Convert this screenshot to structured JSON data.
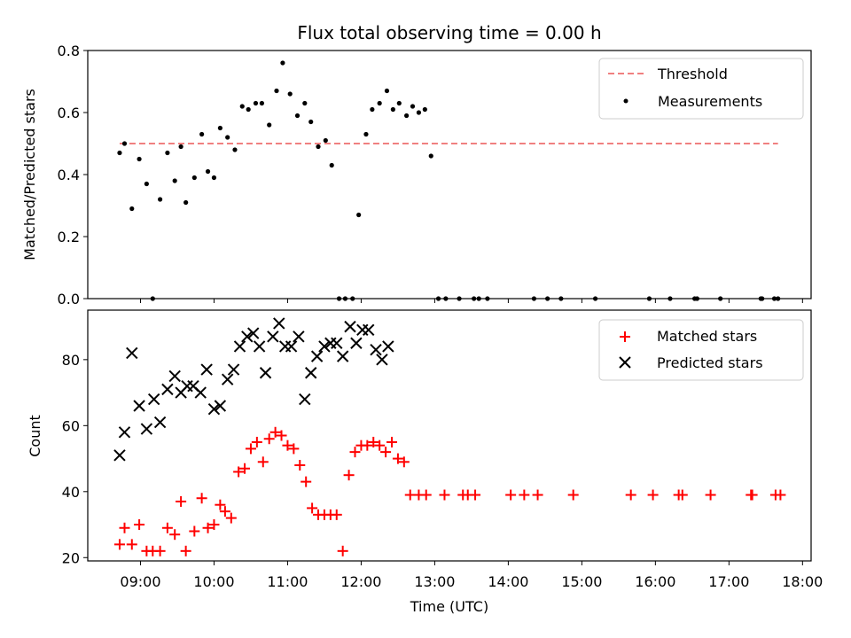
{
  "chart_data": [
    {
      "type": "scatter",
      "title": "Flux total observing time = 0.00 h",
      "ylabel": "Matched/Predicted stars",
      "xlabel": "",
      "xlim": [
        "08:17",
        "18:07"
      ],
      "ylim": [
        0,
        0.8
      ],
      "yticks": [
        "0.0",
        "0.2",
        "0.4",
        "0.6",
        "0.8"
      ],
      "legend_position": "top-right",
      "threshold": {
        "name": "Threshold",
        "value": 0.5,
        "x_start": "08:43",
        "x_end": "17:40",
        "color": "#f08080"
      },
      "series": [
        {
          "name": "Measurements",
          "color": "#000000",
          "marker": "dot",
          "points": [
            [
              "08:43",
              0.47
            ],
            [
              "08:47",
              0.5
            ],
            [
              "08:53",
              0.29
            ],
            [
              "08:59",
              0.45
            ],
            [
              "09:05",
              0.37
            ],
            [
              "09:10",
              0.0
            ],
            [
              "09:16",
              0.32
            ],
            [
              "09:22",
              0.47
            ],
            [
              "09:28",
              0.38
            ],
            [
              "09:33",
              0.49
            ],
            [
              "09:37",
              0.31
            ],
            [
              "09:44",
              0.39
            ],
            [
              "09:50",
              0.53
            ],
            [
              "09:55",
              0.41
            ],
            [
              "10:00",
              0.39
            ],
            [
              "10:05",
              0.55
            ],
            [
              "10:11",
              0.52
            ],
            [
              "10:17",
              0.48
            ],
            [
              "10:23",
              0.62
            ],
            [
              "10:28",
              0.61
            ],
            [
              "10:34",
              0.63
            ],
            [
              "10:39",
              0.63
            ],
            [
              "10:45",
              0.56
            ],
            [
              "10:51",
              0.67
            ],
            [
              "10:56",
              0.76
            ],
            [
              "11:02",
              0.66
            ],
            [
              "11:08",
              0.59
            ],
            [
              "11:14",
              0.63
            ],
            [
              "11:19",
              0.57
            ],
            [
              "11:25",
              0.49
            ],
            [
              "11:31",
              0.51
            ],
            [
              "11:36",
              0.43
            ],
            [
              "11:42",
              0.0
            ],
            [
              "11:47",
              0.0
            ],
            [
              "11:53",
              0.0
            ],
            [
              "11:58",
              0.27
            ],
            [
              "12:04",
              0.53
            ],
            [
              "12:09",
              0.61
            ],
            [
              "12:15",
              0.63
            ],
            [
              "12:21",
              0.67
            ],
            [
              "12:26",
              0.61
            ],
            [
              "12:31",
              0.63
            ],
            [
              "12:37",
              0.59
            ],
            [
              "12:42",
              0.62
            ],
            [
              "12:47",
              0.6
            ],
            [
              "12:52",
              0.61
            ],
            [
              "12:57",
              0.46
            ],
            [
              "13:03",
              0.0
            ],
            [
              "13:09",
              0.0
            ],
            [
              "13:20",
              0.0
            ],
            [
              "13:32",
              0.0
            ],
            [
              "13:36",
              0.0
            ],
            [
              "13:43",
              0.0
            ],
            [
              "14:21",
              0.0
            ],
            [
              "14:32",
              0.0
            ],
            [
              "14:43",
              0.0
            ],
            [
              "15:11",
              0.0
            ],
            [
              "15:55",
              0.0
            ],
            [
              "16:12",
              0.0
            ],
            [
              "16:32",
              0.0
            ],
            [
              "16:34",
              0.0
            ],
            [
              "16:53",
              0.0
            ],
            [
              "17:26",
              0.0
            ],
            [
              "17:27",
              0.0
            ],
            [
              "17:37",
              0.0
            ],
            [
              "17:40",
              0.0
            ]
          ]
        }
      ]
    },
    {
      "type": "scatter",
      "title": "",
      "ylabel": "Count",
      "xlabel": "Time (UTC)",
      "xlim": [
        "08:17",
        "18:07"
      ],
      "ylim": [
        19,
        95
      ],
      "yticks": [
        "20",
        "40",
        "60",
        "80"
      ],
      "xticks": [
        "09:00",
        "10:00",
        "11:00",
        "12:00",
        "13:00",
        "14:00",
        "15:00",
        "16:00",
        "17:00",
        "18:00"
      ],
      "legend_position": "top-right",
      "series": [
        {
          "name": "Matched stars",
          "color": "#ff0000",
          "marker": "plus",
          "points": [
            [
              "08:43",
              24
            ],
            [
              "08:47",
              29
            ],
            [
              "08:53",
              24
            ],
            [
              "08:59",
              30
            ],
            [
              "09:05",
              22
            ],
            [
              "09:10",
              22
            ],
            [
              "09:16",
              22
            ],
            [
              "09:22",
              29
            ],
            [
              "09:28",
              27
            ],
            [
              "09:33",
              37
            ],
            [
              "09:37",
              22
            ],
            [
              "09:44",
              28
            ],
            [
              "09:50",
              38
            ],
            [
              "09:55",
              29
            ],
            [
              "10:00",
              30
            ],
            [
              "10:05",
              36
            ],
            [
              "10:09",
              34
            ],
            [
              "10:14",
              32
            ],
            [
              "10:20",
              46
            ],
            [
              "10:25",
              47
            ],
            [
              "10:30",
              53
            ],
            [
              "10:35",
              55
            ],
            [
              "10:40",
              49
            ],
            [
              "10:45",
              56
            ],
            [
              "10:50",
              58
            ],
            [
              "10:55",
              57
            ],
            [
              "11:00",
              54
            ],
            [
              "11:05",
              53
            ],
            [
              "11:10",
              48
            ],
            [
              "11:15",
              43
            ],
            [
              "11:20",
              35
            ],
            [
              "11:25",
              33
            ],
            [
              "11:30",
              33
            ],
            [
              "11:35",
              33
            ],
            [
              "11:40",
              33
            ],
            [
              "11:45",
              22
            ],
            [
              "11:50",
              45
            ],
            [
              "11:55",
              52
            ],
            [
              "12:00",
              54
            ],
            [
              "12:05",
              54
            ],
            [
              "12:10",
              55
            ],
            [
              "12:15",
              54
            ],
            [
              "12:20",
              52
            ],
            [
              "12:25",
              55
            ],
            [
              "12:30",
              50
            ],
            [
              "12:35",
              49
            ],
            [
              "12:40",
              39
            ],
            [
              "12:47",
              39
            ],
            [
              "12:53",
              39
            ],
            [
              "13:08",
              39
            ],
            [
              "13:23",
              39
            ],
            [
              "13:27",
              39
            ],
            [
              "13:33",
              39
            ],
            [
              "14:02",
              39
            ],
            [
              "14:13",
              39
            ],
            [
              "14:24",
              39
            ],
            [
              "14:53",
              39
            ],
            [
              "15:40",
              39
            ],
            [
              "15:58",
              39
            ],
            [
              "16:19",
              39
            ],
            [
              "16:22",
              39
            ],
            [
              "16:45",
              39
            ],
            [
              "17:18",
              39
            ],
            [
              "17:19",
              39
            ],
            [
              "17:38",
              39
            ],
            [
              "17:42",
              39
            ]
          ]
        },
        {
          "name": "Predicted stars",
          "color": "#000000",
          "marker": "x",
          "points": [
            [
              "08:43",
              51
            ],
            [
              "08:47",
              58
            ],
            [
              "08:53",
              82
            ],
            [
              "08:59",
              66
            ],
            [
              "09:05",
              59
            ],
            [
              "09:11",
              68
            ],
            [
              "09:16",
              61
            ],
            [
              "09:22",
              71
            ],
            [
              "09:28",
              75
            ],
            [
              "09:33",
              70
            ],
            [
              "09:38",
              72
            ],
            [
              "09:43",
              72
            ],
            [
              "09:49",
              70
            ],
            [
              "09:54",
              77
            ],
            [
              "10:00",
              65
            ],
            [
              "10:05",
              66
            ],
            [
              "10:11",
              74
            ],
            [
              "10:16",
              77
            ],
            [
              "10:21",
              84
            ],
            [
              "10:27",
              87
            ],
            [
              "10:32",
              88
            ],
            [
              "10:37",
              84
            ],
            [
              "10:42",
              76
            ],
            [
              "10:48",
              87
            ],
            [
              "10:53",
              91
            ],
            [
              "10:58",
              84
            ],
            [
              "11:03",
              84
            ],
            [
              "11:09",
              87
            ],
            [
              "11:14",
              68
            ],
            [
              "11:19",
              76
            ],
            [
              "11:24",
              81
            ],
            [
              "11:30",
              84
            ],
            [
              "11:35",
              85
            ],
            [
              "11:40",
              85
            ],
            [
              "11:45",
              81
            ],
            [
              "11:51",
              90
            ],
            [
              "11:56",
              85
            ],
            [
              "12:01",
              89
            ],
            [
              "12:06",
              89
            ],
            [
              "12:12",
              83
            ],
            [
              "12:17",
              80
            ],
            [
              "12:22",
              84
            ]
          ]
        }
      ]
    }
  ]
}
